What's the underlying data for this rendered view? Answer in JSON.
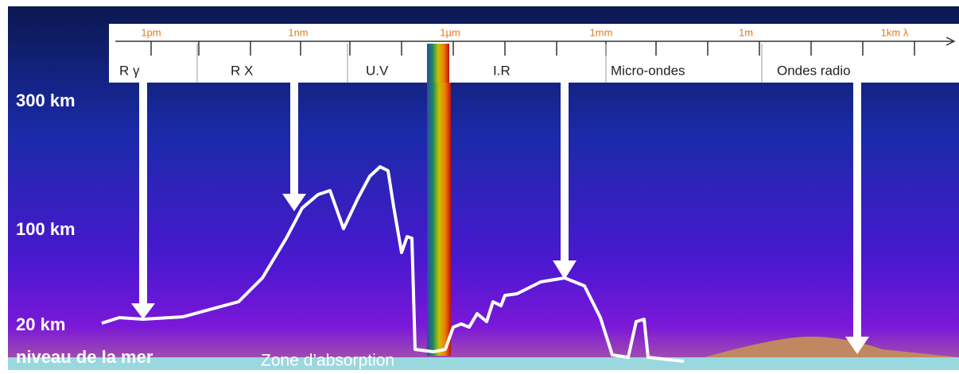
{
  "scale": {
    "labels": [
      "1pm",
      "1nm",
      "1µm",
      "1mm",
      "1m",
      "1km λ"
    ]
  },
  "bands": [
    "R γ",
    "R X",
    "U.V",
    "I.R",
    "Micro-ondes",
    "Ondes radio"
  ],
  "altitudes": [
    "300 km",
    "100 km",
    "20 km",
    "niveau de la mer"
  ],
  "annotation": "Zone d’absorption"
}
